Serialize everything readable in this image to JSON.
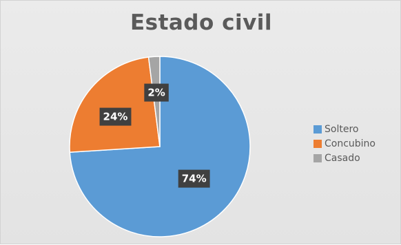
{
  "chart_data": {
    "type": "pie",
    "title": "Estado civil",
    "categories": [
      "Soltero",
      "Concubino",
      "Casado"
    ],
    "values": [
      74,
      24,
      2
    ],
    "data_labels": [
      "74%",
      "24%",
      "2%"
    ],
    "colors": [
      "#5b9bd5",
      "#ed7d31",
      "#a5a5a5"
    ],
    "legend_position": "right"
  }
}
